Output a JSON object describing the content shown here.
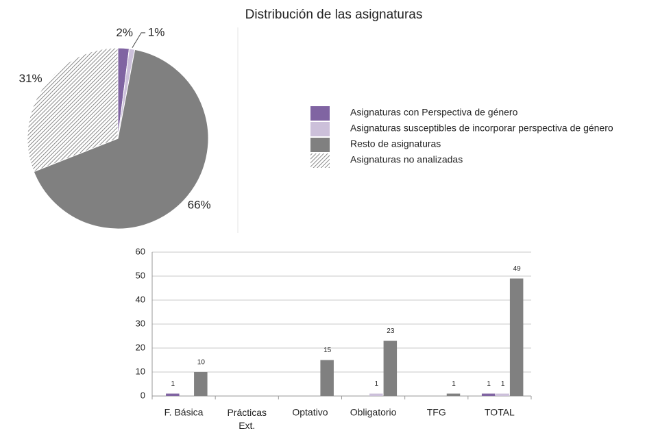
{
  "chart_data": [
    {
      "type": "pie",
      "title": "Distribución de las asignaturas",
      "labels": [
        "Asignaturas con Perspectiva de género",
        "Asignaturas susceptibles de incorporar perspectiva de género",
        "Resto de asignaturas",
        "Asignaturas no analizadas"
      ],
      "values": [
        2,
        1,
        66,
        31
      ],
      "value_labels": [
        "2%",
        "1%",
        "66%",
        "31%"
      ],
      "colors": [
        "#8064a2",
        "#ccc0da",
        "#808080",
        "hatch"
      ],
      "legend": "right"
    },
    {
      "type": "bar",
      "categories": [
        "F. Básica",
        "Prácticas Ext.",
        "Optativo",
        "Obligatorio",
        "TFG",
        "TOTAL"
      ],
      "series": [
        {
          "color": "#8064a2",
          "values": [
            1,
            null,
            null,
            null,
            null,
            1
          ]
        },
        {
          "color": "#ccc0da",
          "values": [
            null,
            null,
            null,
            1,
            null,
            1
          ]
        },
        {
          "color": "#808080",
          "values": [
            10,
            null,
            15,
            23,
            1,
            49
          ]
        }
      ],
      "ylim": [
        0,
        60
      ],
      "yticks": [
        0,
        10,
        20,
        30,
        40,
        50,
        60
      ],
      "grid": true
    }
  ]
}
